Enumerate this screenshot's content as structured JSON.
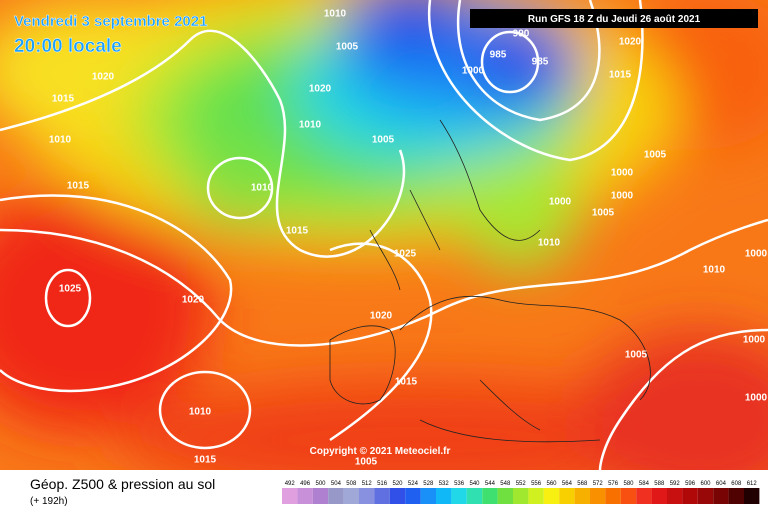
{
  "header": {
    "date": "Vendredi 3 septembre 2021",
    "time": "20:00 locale",
    "run": "Run GFS 18 Z du Jeudi 26 août 2021"
  },
  "footer": {
    "title": "Géop. Z500 & pression au sol",
    "lead": "(+ 192h)",
    "copyright": "Copyright © 2021 Meteociel.fr"
  },
  "isobar_labels": [
    "1010",
    "1005",
    "990",
    "985",
    "985",
    "1020",
    "1015",
    "1020",
    "1015",
    "1010",
    "1015",
    "1020",
    "1010",
    "1005",
    "1010",
    "1015",
    "1025",
    "1025",
    "1020",
    "1020",
    "1015",
    "1010",
    "1015",
    "1005",
    "1000",
    "1000",
    "1005",
    "1010",
    "1000",
    "1000",
    "1005",
    "1010",
    "1000",
    "1005",
    "1000",
    "1000"
  ],
  "legend": {
    "values": [
      492,
      496,
      500,
      504,
      508,
      512,
      516,
      520,
      524,
      528,
      532,
      536,
      540,
      544,
      548,
      552,
      556,
      560,
      564,
      568,
      572,
      576,
      580,
      584,
      588,
      592,
      596,
      600,
      604,
      608,
      612
    ],
    "colors": [
      "#e0a0e0",
      "#c890d8",
      "#b080d0",
      "#9898c8",
      "#a0a8d8",
      "#8890e0",
      "#6070e0",
      "#3050e8",
      "#2060f0",
      "#1890f8",
      "#10b8f8",
      "#20d8e8",
      "#30e0b0",
      "#40e070",
      "#70e040",
      "#a0e830",
      "#d0f020",
      "#f8f010",
      "#f8d000",
      "#f8b000",
      "#f89000",
      "#f87000",
      "#f85010",
      "#f03020",
      "#e01818",
      "#c81010",
      "#b00808",
      "#980808",
      "#780404",
      "#500202",
      "#200000"
    ]
  }
}
